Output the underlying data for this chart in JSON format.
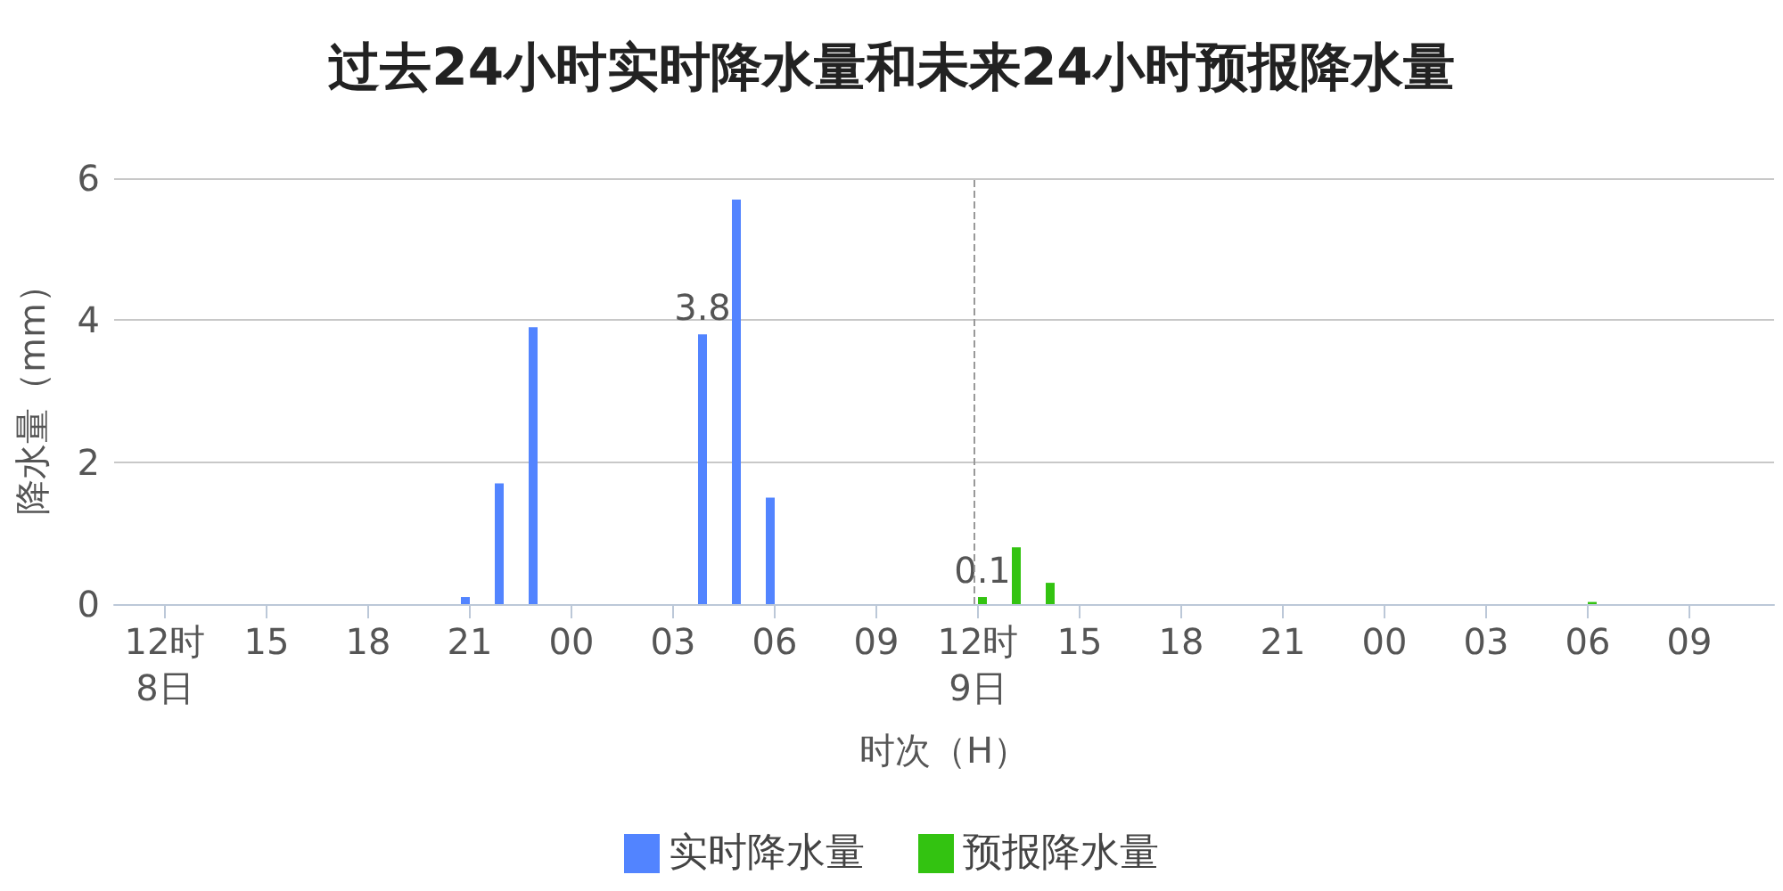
{
  "chart_data": {
    "type": "bar",
    "title": "过去24小时实时降水量和未来24小时预报降水量",
    "xlabel": "时次（H）",
    "ylabel": "降水量（mm）",
    "categories": [
      null,
      "12时\n8日",
      null,
      null,
      "15",
      null,
      null,
      "18",
      null,
      null,
      "21",
      null,
      null,
      "00",
      null,
      null,
      "03",
      null,
      null,
      "06",
      null,
      null,
      "09",
      null,
      null,
      "12时\n9日",
      null,
      null,
      "15",
      null,
      null,
      "18",
      null,
      null,
      "21",
      null,
      null,
      "00",
      null,
      null,
      "03",
      null,
      null,
      "06",
      null,
      null,
      "09",
      null,
      null
    ],
    "series": [
      {
        "name": "实时降水量",
        "color": "#5284ff",
        "values": [
          null,
          null,
          null,
          null,
          null,
          null,
          null,
          null,
          null,
          null,
          0.1,
          1.7,
          3.9,
          null,
          null,
          null,
          null,
          3.8,
          5.7,
          1.5,
          null,
          null,
          null,
          null,
          null,
          null,
          null,
          null,
          null,
          null,
          null,
          null,
          null,
          null,
          null,
          null,
          null,
          null,
          null,
          null,
          null,
          null,
          null,
          null,
          null,
          null,
          null,
          null,
          null
        ],
        "value_labels": [
          null,
          null,
          null,
          null,
          null,
          null,
          null,
          null,
          null,
          null,
          null,
          null,
          null,
          null,
          null,
          null,
          null,
          "3.8",
          null,
          null,
          null,
          null,
          null,
          null,
          null,
          null,
          null,
          null,
          null,
          null,
          null,
          null,
          null,
          null,
          null,
          null,
          null,
          null,
          null,
          null,
          null,
          null,
          null,
          null,
          null,
          null,
          null,
          null,
          null
        ]
      },
      {
        "name": "预报降水量",
        "color": "#33c311",
        "values": [
          null,
          null,
          null,
          null,
          null,
          null,
          null,
          null,
          null,
          null,
          null,
          null,
          null,
          null,
          null,
          null,
          null,
          null,
          null,
          null,
          null,
          null,
          null,
          null,
          null,
          0.1,
          0.8,
          0.3,
          null,
          null,
          null,
          null,
          null,
          null,
          null,
          null,
          null,
          null,
          null,
          null,
          null,
          null,
          null,
          0.03,
          null,
          null,
          null,
          null,
          null
        ],
        "value_labels": [
          null,
          null,
          null,
          null,
          null,
          null,
          null,
          null,
          null,
          null,
          null,
          null,
          null,
          null,
          null,
          null,
          null,
          null,
          null,
          null,
          null,
          null,
          null,
          null,
          null,
          "0.1",
          null,
          null,
          null,
          null,
          null,
          null,
          null,
          null,
          null,
          null,
          null,
          null,
          null,
          null,
          null,
          null,
          null,
          null,
          null,
          null,
          null,
          null,
          null
        ]
      }
    ],
    "ylim": [
      0,
      6
    ],
    "yticks": [
      0,
      2,
      4,
      6
    ],
    "grid": "y",
    "legend": "bottom",
    "ref_lines": [
      {
        "axis": "x",
        "value": "12时\n9日",
        "line_style": "dashed",
        "color": "#999999"
      }
    ]
  }
}
